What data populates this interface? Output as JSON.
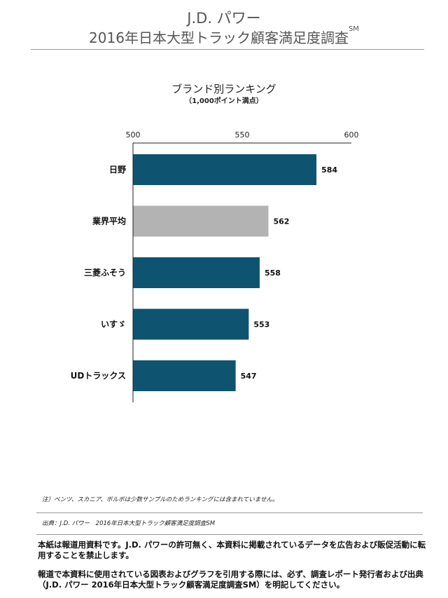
{
  "header": {
    "line1": "J.D. パワー",
    "line2": "2016年日本大型トラック顧客満足度調査",
    "line2_sup": "SM"
  },
  "chart_data": {
    "type": "bar",
    "orientation": "horizontal",
    "title": "ブランド別ランキング",
    "subtitle": "（1,000ポイント満点）",
    "categories": [
      "日野",
      "業界平均",
      "三菱ふそう",
      "いすゞ",
      "UDトラックス"
    ],
    "values": [
      584,
      562,
      558,
      553,
      547
    ],
    "value_labels": [
      "584",
      "562",
      "558",
      "553",
      "547"
    ],
    "xlim": [
      500,
      600
    ],
    "xticks": [
      500,
      550,
      600
    ],
    "xtick_labels": [
      "500",
      "550",
      "600"
    ],
    "colors": [
      "#0e5470",
      "#b3b3b3",
      "#0e5470",
      "#0e5470",
      "#0e5470"
    ],
    "grid": false
  },
  "footer": {
    "note": "注）ベンツ、スカニア、ボルボは少数サンプルのためランキングには含まれていません。",
    "source": "出典：J.D. パワー　2016年日本大型トラック顧客満足度調査SM",
    "para1": "本紙は報道用資料です。J.D. パワーの許可無く、本資料に掲載されているデータを広告および販促活動に転用することを禁止します。",
    "para2": "報道で本資料に使用されている図表およびグラフを引用する際には、必ず、調査レポート発行者および出典（J.D. パワー 2016年日本大型トラック顧客満足度調査SM）を明記してください。"
  }
}
